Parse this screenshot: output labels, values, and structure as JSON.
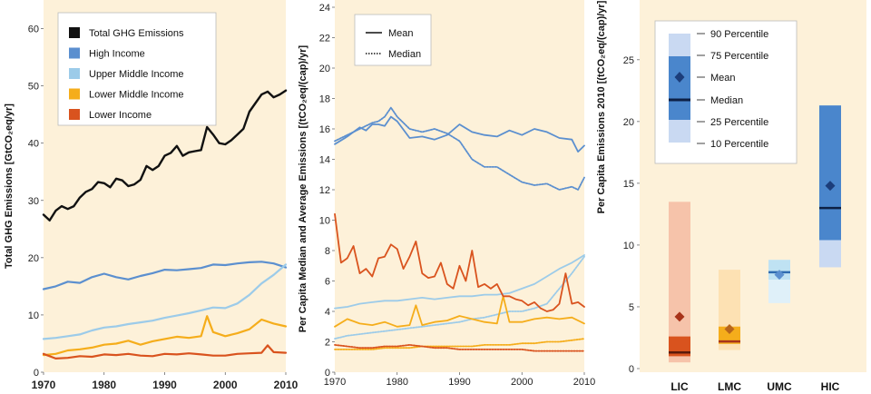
{
  "chart_data": [
    {
      "type": "line",
      "ylabel": "Total GHG Emissions [GtCO₂eq/yr]",
      "xlim": [
        1970,
        2010
      ],
      "ylim": [
        0,
        65
      ],
      "xticks": [
        "1970",
        "1980",
        "1990",
        "2000",
        "2010"
      ],
      "yticks": [
        "0",
        "10",
        "20",
        "30",
        "40",
        "50",
        "60"
      ],
      "legend_position": "top-left",
      "series": [
        {
          "name": "Total GHG Emissions",
          "color": "#111111",
          "x": [
            1970,
            1971,
            1972,
            1973,
            1974,
            1975,
            1976,
            1977,
            1978,
            1979,
            1980,
            1981,
            1982,
            1983,
            1984,
            1985,
            1986,
            1987,
            1988,
            1989,
            1990,
            1991,
            1992,
            1993,
            1994,
            1995,
            1996,
            1997,
            1998,
            1999,
            2000,
            2001,
            2002,
            2003,
            2004,
            2005,
            2006,
            2007,
            2008,
            2009,
            2010
          ],
          "values": [
            27.5,
            26.5,
            28.2,
            29.0,
            28.5,
            29.0,
            30.5,
            31.5,
            32.0,
            33.2,
            33.0,
            32.3,
            33.8,
            33.5,
            32.5,
            32.8,
            33.6,
            36.0,
            35.3,
            36.0,
            37.8,
            38.3,
            39.5,
            37.8,
            38.4,
            38.6,
            38.8,
            42.8,
            41.5,
            40.0,
            39.8,
            40.5,
            41.5,
            42.5,
            45.5,
            47.0,
            48.5,
            49.0,
            48.0,
            48.5,
            49.2
          ]
        },
        {
          "name": "High  Income",
          "color": "#5b8fcf",
          "x": [
            1970,
            1972,
            1974,
            1976,
            1978,
            1980,
            1982,
            1984,
            1986,
            1988,
            1990,
            1992,
            1994,
            1996,
            1998,
            2000,
            2002,
            2004,
            2006,
            2008,
            2010
          ],
          "values": [
            14.5,
            15.0,
            15.8,
            15.6,
            16.6,
            17.2,
            16.6,
            16.2,
            16.8,
            17.3,
            17.9,
            17.8,
            18.0,
            18.2,
            18.8,
            18.7,
            19.0,
            19.2,
            19.3,
            19.0,
            18.3
          ]
        },
        {
          "name": "Upper Middle Income",
          "color": "#9ccbe9",
          "x": [
            1970,
            1972,
            1974,
            1976,
            1978,
            1980,
            1982,
            1984,
            1986,
            1988,
            1990,
            1992,
            1994,
            1996,
            1998,
            2000,
            2002,
            2004,
            2006,
            2008,
            2010
          ],
          "values": [
            5.8,
            6.0,
            6.3,
            6.6,
            7.3,
            7.8,
            8.0,
            8.4,
            8.7,
            9.0,
            9.5,
            9.9,
            10.3,
            10.8,
            11.3,
            11.2,
            12.0,
            13.5,
            15.5,
            17.0,
            18.8
          ]
        },
        {
          "name": "Lower Middle Income",
          "color": "#f5ad1b",
          "x": [
            1970,
            1972,
            1974,
            1976,
            1978,
            1980,
            1982,
            1984,
            1986,
            1988,
            1990,
            1992,
            1994,
            1996,
            1997,
            1998,
            2000,
            2002,
            2004,
            2006,
            2008,
            2010
          ],
          "values": [
            3.0,
            3.2,
            3.8,
            4.0,
            4.3,
            4.8,
            5.0,
            5.5,
            4.8,
            5.4,
            5.8,
            6.2,
            6.0,
            6.3,
            9.8,
            7.0,
            6.3,
            6.8,
            7.5,
            9.2,
            8.5,
            8.0
          ]
        },
        {
          "name": "Lower Income",
          "color": "#d9531e",
          "x": [
            1970,
            1972,
            1974,
            1976,
            1978,
            1980,
            1982,
            1984,
            1986,
            1988,
            1990,
            1992,
            1994,
            1996,
            1998,
            2000,
            2002,
            2004,
            2006,
            2007,
            2008,
            2010
          ],
          "values": [
            3.2,
            2.4,
            2.5,
            2.8,
            2.7,
            3.1,
            3.0,
            3.2,
            2.9,
            2.8,
            3.2,
            3.1,
            3.3,
            3.1,
            2.9,
            2.9,
            3.2,
            3.3,
            3.4,
            4.7,
            3.5,
            3.4
          ]
        }
      ]
    },
    {
      "type": "line",
      "ylabel": "Per Capita Median and Average Emissions [(tCO₂eq/(cap)/yr]",
      "xlim": [
        1970,
        2010
      ],
      "ylim": [
        0,
        24
      ],
      "xticks": [
        "1970",
        "1980",
        "1990",
        "2000",
        "2010"
      ],
      "yticks": [
        "0",
        "2",
        "4",
        "6",
        "8",
        "10",
        "12",
        "14",
        "16",
        "18",
        "20",
        "22",
        "24"
      ],
      "legend_position": "top-left",
      "legend": [
        {
          "name": "Mean",
          "style": "solid"
        },
        {
          "name": "Median",
          "style": "dotted"
        }
      ],
      "series": [
        {
          "group": "High Income",
          "stat": "Mean",
          "color": "#5b8fcf",
          "x": [
            1970,
            1972,
            1974,
            1975,
            1976,
            1977,
            1978,
            1979,
            1980,
            1982,
            1984,
            1986,
            1988,
            1990,
            1992,
            1994,
            1996,
            1998,
            2000,
            2002,
            2004,
            2006,
            2008,
            2009,
            2010
          ],
          "values": [
            15.0,
            15.5,
            16.1,
            15.9,
            16.3,
            16.3,
            16.2,
            16.8,
            16.5,
            15.4,
            15.5,
            15.3,
            15.6,
            16.3,
            15.8,
            15.6,
            15.5,
            15.9,
            15.6,
            16.0,
            15.8,
            15.4,
            15.3,
            14.5,
            14.9
          ]
        },
        {
          "group": "High Income",
          "stat": "Median",
          "color": "#5b8fcf",
          "x": [
            1970,
            1972,
            1974,
            1976,
            1977,
            1978,
            1979,
            1980,
            1982,
            1984,
            1986,
            1988,
            1990,
            1992,
            1994,
            1996,
            1998,
            2000,
            2002,
            2004,
            2006,
            2008,
            2009,
            2010
          ],
          "values": [
            15.2,
            15.6,
            16.0,
            16.4,
            16.5,
            16.8,
            17.4,
            16.8,
            16.0,
            15.8,
            16.0,
            15.7,
            15.2,
            14.0,
            13.5,
            13.5,
            13.0,
            12.5,
            12.3,
            12.4,
            12.0,
            12.2,
            12.0,
            12.8
          ]
        },
        {
          "group": "Upper Middle Income",
          "stat": "Mean",
          "color": "#9ccbe9",
          "x": [
            1970,
            1972,
            1974,
            1976,
            1978,
            1980,
            1982,
            1984,
            1986,
            1988,
            1990,
            1992,
            1994,
            1996,
            1998,
            2000,
            2002,
            2004,
            2006,
            2008,
            2010
          ],
          "values": [
            4.2,
            4.3,
            4.5,
            4.6,
            4.7,
            4.7,
            4.8,
            4.9,
            4.8,
            4.9,
            5.0,
            5.0,
            5.1,
            5.1,
            5.2,
            5.5,
            5.8,
            6.3,
            6.8,
            7.2,
            7.7
          ]
        },
        {
          "group": "Upper Middle Income",
          "stat": "Median",
          "color": "#9ccbe9",
          "x": [
            1970,
            1972,
            1974,
            1976,
            1978,
            1980,
            1982,
            1984,
            1986,
            1988,
            1990,
            1992,
            1994,
            1996,
            1998,
            2000,
            2002,
            2004,
            2006,
            2008,
            2010
          ],
          "values": [
            2.2,
            2.4,
            2.5,
            2.6,
            2.7,
            2.8,
            2.9,
            3.0,
            3.1,
            3.2,
            3.3,
            3.5,
            3.6,
            3.8,
            4.0,
            4.0,
            4.2,
            4.5,
            5.5,
            6.5,
            7.6
          ]
        },
        {
          "group": "Lower Middle Income",
          "stat": "Mean",
          "color": "#f5ad1b",
          "x": [
            1970,
            1972,
            1974,
            1976,
            1978,
            1980,
            1982,
            1983,
            1984,
            1986,
            1988,
            1990,
            1992,
            1994,
            1996,
            1997,
            1998,
            2000,
            2002,
            2004,
            2006,
            2008,
            2010
          ],
          "values": [
            3.0,
            3.5,
            3.2,
            3.1,
            3.3,
            3.0,
            3.1,
            4.4,
            3.1,
            3.3,
            3.4,
            3.7,
            3.5,
            3.3,
            3.2,
            5.0,
            3.3,
            3.3,
            3.5,
            3.6,
            3.5,
            3.6,
            3.2
          ]
        },
        {
          "group": "Lower Middle Income",
          "stat": "Median",
          "color": "#f5ad1b",
          "x": [
            1970,
            1972,
            1974,
            1976,
            1978,
            1980,
            1982,
            1984,
            1986,
            1988,
            1990,
            1992,
            1994,
            1996,
            1998,
            2000,
            2002,
            2004,
            2006,
            2008,
            2010
          ],
          "values": [
            1.5,
            1.5,
            1.5,
            1.5,
            1.6,
            1.6,
            1.6,
            1.7,
            1.7,
            1.7,
            1.7,
            1.7,
            1.8,
            1.8,
            1.8,
            1.9,
            1.9,
            2.0,
            2.0,
            2.1,
            2.2
          ]
        },
        {
          "group": "Lower Income",
          "stat": "Mean",
          "color": "#d9531e",
          "x": [
            1970,
            1971,
            1972,
            1973,
            1974,
            1975,
            1976,
            1977,
            1978,
            1979,
            1980,
            1981,
            1982,
            1983,
            1984,
            1985,
            1986,
            1987,
            1988,
            1989,
            1990,
            1991,
            1992,
            1993,
            1994,
            1995,
            1996,
            1997,
            1998,
            1999,
            2000,
            2001,
            2002,
            2003,
            2004,
            2005,
            2006,
            2007,
            2008,
            2009,
            2010
          ],
          "values": [
            10.4,
            7.2,
            7.5,
            8.3,
            6.5,
            6.8,
            6.3,
            7.5,
            7.6,
            8.4,
            8.1,
            6.8,
            7.6,
            8.6,
            6.5,
            6.2,
            6.3,
            7.2,
            5.8,
            5.5,
            7.0,
            6.0,
            8.0,
            5.6,
            5.8,
            5.5,
            5.8,
            5.0,
            5.0,
            4.8,
            4.7,
            4.4,
            4.6,
            4.2,
            4.0,
            4.1,
            4.5,
            6.5,
            4.5,
            4.6,
            4.3
          ]
        },
        {
          "group": "Lower Income",
          "stat": "Median",
          "color": "#d9531e",
          "x": [
            1970,
            1972,
            1974,
            1976,
            1978,
            1980,
            1982,
            1984,
            1986,
            1988,
            1990,
            1992,
            1994,
            1996,
            1998,
            2000,
            2002,
            2004,
            2006,
            2008,
            2010
          ],
          "values": [
            1.8,
            1.7,
            1.6,
            1.6,
            1.7,
            1.7,
            1.8,
            1.7,
            1.6,
            1.6,
            1.5,
            1.5,
            1.5,
            1.5,
            1.5,
            1.5,
            1.4,
            1.4,
            1.4,
            1.4,
            1.4
          ]
        }
      ]
    },
    {
      "type": "box",
      "ylabel": "Per Capita Emissions 2010 [(tCO₂eq/(cap)/yr]",
      "ylim": [
        0,
        28
      ],
      "yticks": [
        "0",
        "5",
        "10",
        "15",
        "20",
        "25"
      ],
      "categories": [
        "LIC",
        "LMC",
        "UMC",
        "HIC"
      ],
      "legend_position": "top-left",
      "legend": [
        "90 Percentile",
        "75 Percentile",
        "Mean",
        "Median",
        "25 Percentile",
        "10 Percentile"
      ],
      "boxes": [
        {
          "category": "LIC",
          "p10": 0.5,
          "p25": 1.0,
          "median": 1.3,
          "p75": 2.6,
          "p90": 13.5,
          "mean": 4.2,
          "color_outer": "#f6c3aa",
          "color_inner": "#d9531e",
          "color_mean": "#a8331a",
          "color_median": "#5a1a0a"
        },
        {
          "category": "LMC",
          "p10": 1.5,
          "p25": 2.0,
          "median": 2.2,
          "p75": 3.4,
          "p90": 8.0,
          "mean": 3.2,
          "color_outer": "#fde1b3",
          "color_inner": "#f5ad1b",
          "color_mean": "#b8651a",
          "color_median": "#a8331a"
        },
        {
          "category": "UMC",
          "p10": 5.3,
          "p25": 7.2,
          "median": 7.8,
          "p75": 8.8,
          "p90": 8.8,
          "mean": 7.6,
          "color_outer": "#dff0f9",
          "color_inner": "#bfe2f3",
          "color_mean": "#5b8fcf",
          "color_median": "#2f6bb0"
        },
        {
          "category": "HIC",
          "p10": 8.2,
          "p25": 10.4,
          "median": 13.0,
          "p75": 21.3,
          "p90": 21.3,
          "mean": 14.8,
          "color_outer": "#c9d9f2",
          "color_inner": "#4a86cc",
          "color_mean": "#1c3d7a",
          "color_median": "#0d2045"
        }
      ]
    }
  ],
  "legend1": {
    "items": [
      {
        "name": "Total GHG Emissions",
        "color": "#111111"
      },
      {
        "name": "High  Income",
        "color": "#5b8fcf"
      },
      {
        "name": "Upper Middle Income",
        "color": "#9ccbe9"
      },
      {
        "name": "Lower Middle Income",
        "color": "#f5ad1b"
      },
      {
        "name": "Lower Income",
        "color": "#d9531e"
      }
    ]
  },
  "colors": {
    "panel_bg": "#fdf1d9",
    "panel_bg_right": "#fdf1d9"
  }
}
